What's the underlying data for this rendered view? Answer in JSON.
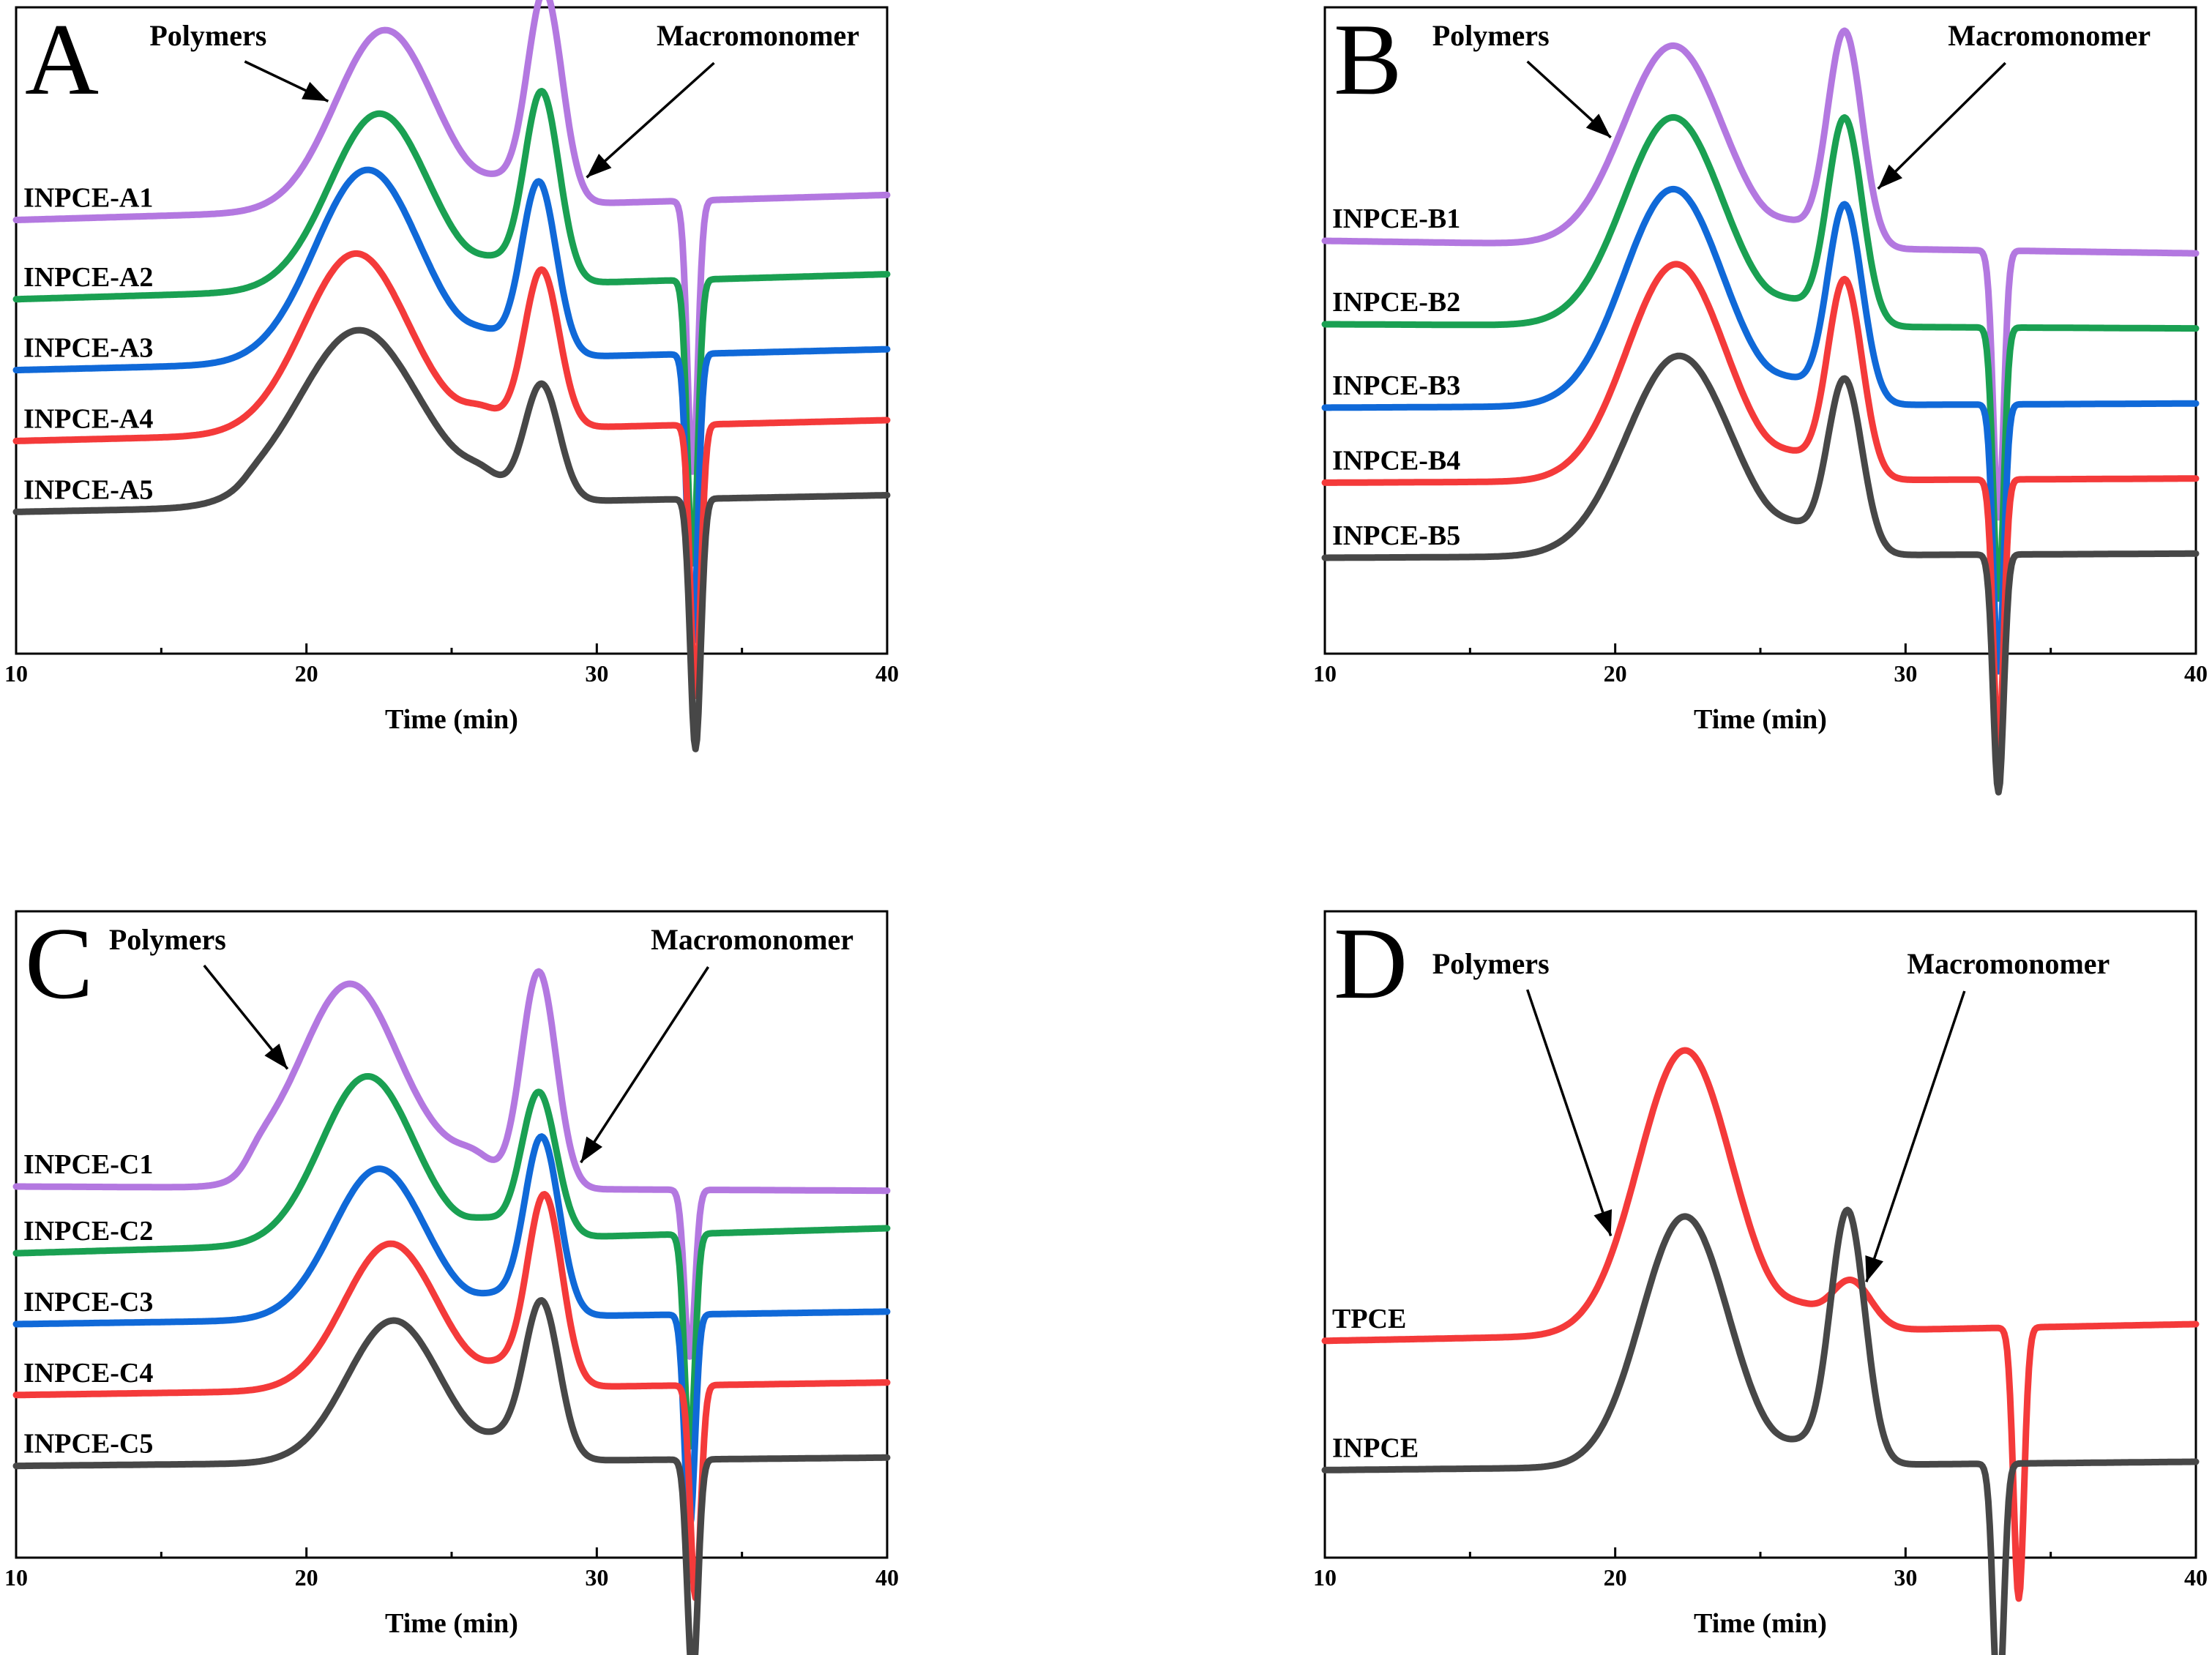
{
  "chart_data": [
    {
      "type": "line",
      "panel": "A",
      "xlabel": "Time (min)",
      "xlim": [
        10,
        40
      ],
      "xticks": [
        10,
        20,
        30,
        40
      ],
      "ylabel": "",
      "y_axis_visible": false,
      "annotations": [
        {
          "text": "Polymers",
          "points_to_x": 20.9
        },
        {
          "text": "Macromonomer",
          "points_to_x": 29.5
        }
      ],
      "series": [
        {
          "name": "INPCE-A1",
          "color": "#b378e0",
          "offset": 10.0,
          "baseline_start": 0.4,
          "baseline_end": 1.0,
          "step_x": 17.9,
          "step_h": 0,
          "polymer_peak": {
            "x": 22.7,
            "height": 4.3,
            "width": 1.7
          },
          "macromonomer_peak": {
            "x": 28.2,
            "height": 5.1,
            "width": 0.6
          },
          "dip": {
            "x": 33.3,
            "depth": 6.5
          }
        },
        {
          "name": "INPCE-A2",
          "color": "#1aa052",
          "offset": 8.2,
          "baseline_start": 0.3,
          "baseline_end": 0.9,
          "step_x": 17.9,
          "step_h": 0,
          "polymer_peak": {
            "x": 22.5,
            "height": 4.2,
            "width": 1.7
          },
          "macromonomer_peak": {
            "x": 28.1,
            "height": 4.6,
            "width": 0.6
          },
          "dip": {
            "x": 33.3,
            "depth": 6.8
          }
        },
        {
          "name": "INPCE-A3",
          "color": "#1069d8",
          "offset": 6.4,
          "baseline_start": 0.4,
          "baseline_end": 0.9,
          "step_x": 17.9,
          "step_h": 0,
          "polymer_peak": {
            "x": 22.1,
            "height": 4.6,
            "width": 1.8
          },
          "macromonomer_peak": {
            "x": 28.0,
            "height": 4.2,
            "width": 0.6
          },
          "dip": {
            "x": 33.3,
            "depth": 6.9
          }
        },
        {
          "name": "INPCE-A4",
          "color": "#f43a3a",
          "offset": 4.8,
          "baseline_start": 0.3,
          "baseline_end": 0.8,
          "step_x": 17.9,
          "step_h": 0,
          "polymer_peak": {
            "x": 21.7,
            "height": 4.3,
            "width": 1.8
          },
          "macromonomer_peak": {
            "x": 28.1,
            "height": 3.8,
            "width": 0.6
          },
          "dip": {
            "x": 33.4,
            "depth": 6.5
          }
        },
        {
          "name": "INPCE-A5",
          "color": "#474747",
          "offset": 3.0,
          "baseline_start": 0.4,
          "baseline_end": 0.8,
          "step_x": 17.9,
          "step_h": 0.3,
          "polymer_peak": {
            "x": 21.8,
            "height": 3.9,
            "width": 2.0
          },
          "macromonomer_peak": {
            "x": 28.1,
            "height": 2.8,
            "width": 0.6
          },
          "dip": {
            "x": 33.4,
            "depth": 6.0
          }
        }
      ]
    },
    {
      "type": "line",
      "panel": "B",
      "xlabel": "Time (min)",
      "xlim": [
        10,
        40
      ],
      "xticks": [
        10,
        20,
        30,
        40
      ],
      "ylabel": "",
      "y_axis_visible": false,
      "annotations": [
        {
          "text": "Polymers",
          "points_to_x": 20.0
        },
        {
          "text": "Macromonomer",
          "points_to_x": 28.9
        }
      ],
      "series": [
        {
          "name": "INPCE-B1",
          "color": "#b378e0",
          "offset": 8.6,
          "baseline_start": 1.3,
          "baseline_end": 1.0,
          "step_x": 18.0,
          "step_h": 0,
          "polymer_peak": {
            "x": 22.0,
            "height": 4.8,
            "width": 1.7
          },
          "macromonomer_peak": {
            "x": 27.9,
            "height": 5.2,
            "width": 0.6
          },
          "dip": {
            "x": 33.2,
            "depth": 6.4
          }
        },
        {
          "name": "INPCE-B2",
          "color": "#1aa052",
          "offset": 6.9,
          "baseline_start": 1.0,
          "baseline_end": 0.9,
          "step_x": 18.0,
          "step_h": 0,
          "polymer_peak": {
            "x": 22.0,
            "height": 5.0,
            "width": 1.7
          },
          "macromonomer_peak": {
            "x": 27.9,
            "height": 5.0,
            "width": 0.6
          },
          "dip": {
            "x": 33.2,
            "depth": 6.5
          }
        },
        {
          "name": "INPCE-B3",
          "color": "#1069d8",
          "offset": 5.2,
          "baseline_start": 0.7,
          "baseline_end": 0.8,
          "step_x": 18.0,
          "step_h": 0,
          "polymer_peak": {
            "x": 22.0,
            "height": 5.2,
            "width": 1.7
          },
          "macromonomer_peak": {
            "x": 27.9,
            "height": 4.8,
            "width": 0.6
          },
          "dip": {
            "x": 33.2,
            "depth": 6.4
          }
        },
        {
          "name": "INPCE-B4",
          "color": "#f43a3a",
          "offset": 3.5,
          "baseline_start": 0.6,
          "baseline_end": 0.7,
          "step_x": 18.0,
          "step_h": 0,
          "polymer_peak": {
            "x": 22.1,
            "height": 5.2,
            "width": 1.7
          },
          "macromonomer_peak": {
            "x": 27.9,
            "height": 4.8,
            "width": 0.6
          },
          "dip": {
            "x": 33.2,
            "depth": 6.4
          }
        },
        {
          "name": "INPCE-B5",
          "color": "#474747",
          "offset": 1.9,
          "baseline_start": 0.4,
          "baseline_end": 0.5,
          "step_x": 18.0,
          "step_h": 0,
          "polymer_peak": {
            "x": 22.2,
            "height": 4.8,
            "width": 1.8
          },
          "macromonomer_peak": {
            "x": 27.9,
            "height": 4.2,
            "width": 0.6
          },
          "dip": {
            "x": 33.2,
            "depth": 5.7
          }
        }
      ]
    },
    {
      "type": "line",
      "panel": "C",
      "xlabel": "Time (min)",
      "xlim": [
        10,
        40
      ],
      "xticks": [
        10,
        20,
        30,
        40
      ],
      "ylabel": "",
      "y_axis_visible": false,
      "annotations": [
        {
          "text": "Polymers",
          "points_to_x": 19.5
        },
        {
          "text": "Macromonomer",
          "points_to_x": 29.3
        }
      ],
      "series": [
        {
          "name": "INPCE-C1",
          "color": "#b378e0",
          "offset": 8.8,
          "baseline_start": 0.1,
          "baseline_end": 0.0,
          "step_x": 18.0,
          "step_h": 0.8,
          "polymer_peak": {
            "x": 21.5,
            "height": 4.1,
            "width": 1.6
          },
          "macromonomer_peak": {
            "x": 28.0,
            "height": 5.2,
            "width": 0.6
          },
          "dip": {
            "x": 33.2,
            "depth": 4.0
          }
        },
        {
          "name": "INPCE-C2",
          "color": "#1aa052",
          "offset": 7.0,
          "baseline_start": 0.3,
          "baseline_end": 0.9,
          "step_x": 18.0,
          "step_h": 0,
          "polymer_peak": {
            "x": 22.1,
            "height": 4.0,
            "width": 1.6
          },
          "macromonomer_peak": {
            "x": 28.0,
            "height": 3.5,
            "width": 0.6
          },
          "dip": {
            "x": 33.2,
            "depth": 5.1
          }
        },
        {
          "name": "INPCE-C3",
          "color": "#1069d8",
          "offset": 5.3,
          "baseline_start": 0.3,
          "baseline_end": 0.6,
          "step_x": 18.0,
          "step_h": 0,
          "polymer_peak": {
            "x": 22.5,
            "height": 3.6,
            "width": 1.6
          },
          "macromonomer_peak": {
            "x": 28.1,
            "height": 4.3,
            "width": 0.6
          },
          "dip": {
            "x": 33.2,
            "depth": 5.1
          }
        },
        {
          "name": "INPCE-C4",
          "color": "#f43a3a",
          "offset": 3.5,
          "baseline_start": 0.4,
          "baseline_end": 0.7,
          "step_x": 18.0,
          "step_h": 0,
          "polymer_peak": {
            "x": 22.9,
            "height": 3.5,
            "width": 1.6
          },
          "macromonomer_peak": {
            "x": 28.2,
            "height": 4.6,
            "width": 0.6
          },
          "dip": {
            "x": 33.4,
            "depth": 5.1
          }
        },
        {
          "name": "INPCE-C5",
          "color": "#474747",
          "offset": 1.6,
          "baseline_start": 0.6,
          "baseline_end": 0.8,
          "step_x": 18.0,
          "step_h": 0,
          "polymer_peak": {
            "x": 23.0,
            "height": 3.4,
            "width": 1.6
          },
          "macromonomer_peak": {
            "x": 28.1,
            "height": 3.8,
            "width": 0.6
          },
          "dip": {
            "x": 33.3,
            "depth": 5.3
          }
        }
      ]
    },
    {
      "type": "line",
      "panel": "D",
      "xlabel": "Time (min)",
      "xlim": [
        10,
        40
      ],
      "xticks": [
        10,
        20,
        30,
        40
      ],
      "ylabel": "",
      "y_axis_visible": false,
      "annotations": [
        {
          "text": "Polymers",
          "points_to_x": 20.0
        },
        {
          "text": "Macromonomer",
          "points_to_x": 28.5
        }
      ],
      "series": [
        {
          "name": "TPCE",
          "color": "#f43a3a",
          "offset": 4.8,
          "baseline_start": 0.4,
          "baseline_end": 0.8,
          "step_x": 18.0,
          "step_h": 0,
          "polymer_peak": {
            "x": 22.4,
            "height": 6.8,
            "width": 1.6
          },
          "macromonomer_peak": {
            "x": 28.1,
            "height": 1.2,
            "width": 0.7
          },
          "dip": {
            "x": 33.9,
            "depth": 6.5
          }
        },
        {
          "name": "INPCE",
          "color": "#474747",
          "offset": 1.9,
          "baseline_start": 0.2,
          "baseline_end": 0.4,
          "step_x": 18.0,
          "step_h": 0,
          "polymer_peak": {
            "x": 22.4,
            "height": 6.0,
            "width": 1.5
          },
          "macromonomer_peak": {
            "x": 28.0,
            "height": 6.1,
            "width": 0.6
          },
          "dip": {
            "x": 33.2,
            "depth": 6.0
          }
        }
      ]
    }
  ]
}
